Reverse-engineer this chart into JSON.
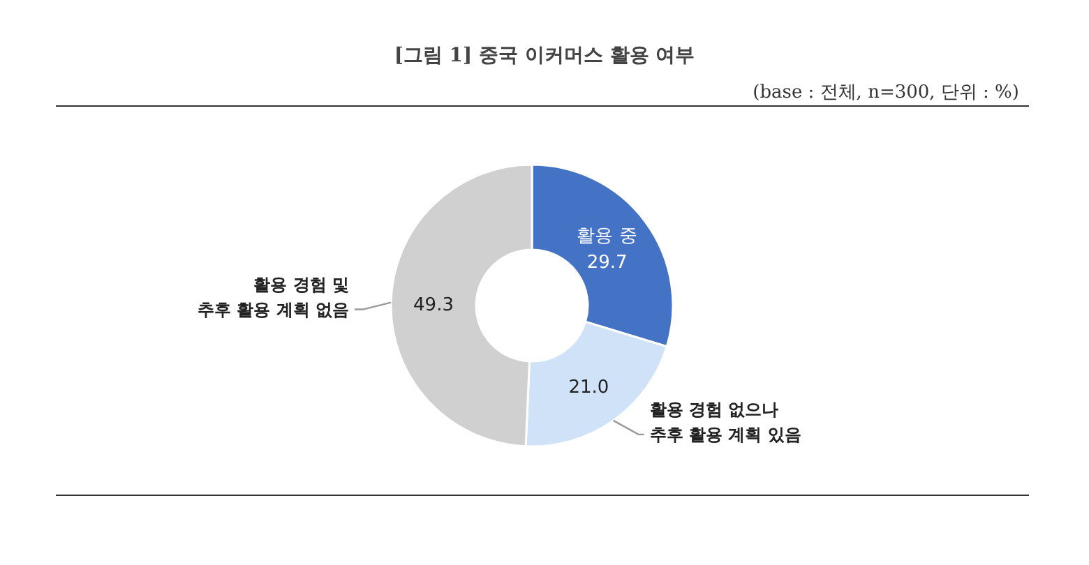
{
  "chart_data": {
    "type": "donut",
    "title": "[그림 1] 중국 이커머스 활용 여부",
    "subtitle": "(base : 전체, n=300, 단위 : %)",
    "categories": [
      "활용 중",
      "활용 경험 없으나\n추후 활용 계획 있음",
      "활용 경험 및\n추후 활용 계획 없음"
    ],
    "values": [
      29.7,
      21.0,
      49.3
    ],
    "colors": [
      "#4472c4",
      "#cfe2f8",
      "#d0d0d0"
    ],
    "value_labels": [
      "29.7",
      "21.0",
      "49.3"
    ]
  }
}
